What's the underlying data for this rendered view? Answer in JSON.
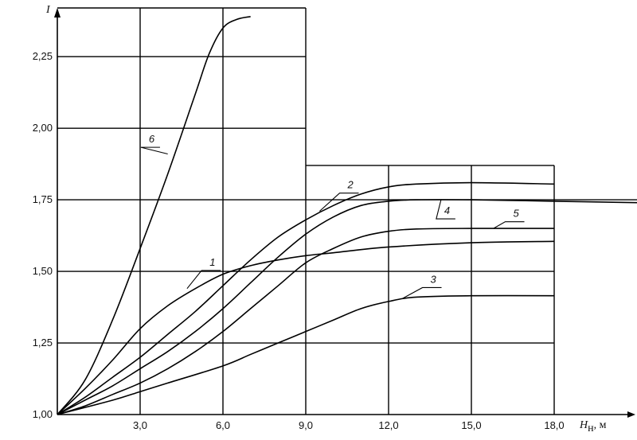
{
  "chart_data": {
    "type": "line",
    "ylabel": "I",
    "xlabel": "H",
    "xlabel_sub": "н",
    "xlabel_unit": ", м",
    "xlim": [
      0,
      21
    ],
    "ylim": [
      1.0,
      2.42
    ],
    "grid": true,
    "x_ticks": [
      {
        "value": 3,
        "label": "3,0"
      },
      {
        "value": 6,
        "label": "6,0"
      },
      {
        "value": 9,
        "label": "9,0"
      },
      {
        "value": 12,
        "label": "12,0"
      },
      {
        "value": 15,
        "label": "15,0"
      },
      {
        "value": 18,
        "label": "18,0"
      }
    ],
    "y_ticks": [
      {
        "value": 1.0,
        "label": "1,00"
      },
      {
        "value": 1.25,
        "label": "1,25"
      },
      {
        "value": 1.5,
        "label": "1,50"
      },
      {
        "value": 1.75,
        "label": "1,75"
      },
      {
        "value": 2.0,
        "label": "2,00"
      },
      {
        "value": 2.25,
        "label": "2,25"
      }
    ],
    "series": [
      {
        "name": "1",
        "x": [
          0,
          1,
          2,
          3,
          4,
          5,
          6,
          7,
          8,
          9,
          10,
          12,
          15,
          18
        ],
        "y": [
          1.0,
          1.09,
          1.19,
          1.3,
          1.38,
          1.44,
          1.49,
          1.52,
          1.54,
          1.555,
          1.565,
          1.585,
          1.6,
          1.605
        ]
      },
      {
        "name": "2",
        "x": [
          0,
          1,
          2,
          3,
          4,
          5,
          6,
          7,
          8,
          9,
          10,
          11,
          12,
          13,
          15,
          18
        ],
        "y": [
          1.0,
          1.06,
          1.13,
          1.2,
          1.28,
          1.36,
          1.45,
          1.54,
          1.62,
          1.68,
          1.73,
          1.77,
          1.795,
          1.805,
          1.81,
          1.805
        ]
      },
      {
        "name": "3",
        "x": [
          0,
          2,
          3,
          4,
          6,
          7,
          8,
          9,
          10,
          11,
          12,
          13,
          15,
          18
        ],
        "y": [
          1.0,
          1.05,
          1.08,
          1.11,
          1.17,
          1.21,
          1.25,
          1.29,
          1.33,
          1.37,
          1.395,
          1.41,
          1.415,
          1.415
        ]
      },
      {
        "name": "4",
        "x": [
          0,
          1,
          2,
          3,
          4,
          5,
          6,
          7,
          8,
          9,
          10,
          11,
          12,
          13,
          15,
          18,
          21
        ],
        "y": [
          1.0,
          1.05,
          1.1,
          1.16,
          1.22,
          1.29,
          1.37,
          1.46,
          1.55,
          1.63,
          1.69,
          1.73,
          1.745,
          1.75,
          1.75,
          1.745,
          1.74
        ]
      },
      {
        "name": "5",
        "x": [
          0,
          1,
          2,
          3,
          4,
          5,
          6,
          7,
          8,
          9,
          10,
          11,
          12,
          13,
          15,
          18
        ],
        "y": [
          1.0,
          1.03,
          1.07,
          1.11,
          1.16,
          1.22,
          1.29,
          1.37,
          1.45,
          1.53,
          1.58,
          1.62,
          1.64,
          1.648,
          1.65,
          1.65
        ]
      },
      {
        "name": "6",
        "x": [
          0,
          1,
          2,
          3,
          4,
          5,
          5.5,
          6,
          6.5,
          7
        ],
        "y": [
          1.0,
          1.12,
          1.33,
          1.58,
          1.84,
          2.12,
          2.26,
          2.35,
          2.38,
          2.39
        ]
      }
    ],
    "curve_labels": [
      {
        "series": "1",
        "text": "1",
        "at": [
          4.7,
          1.44
        ],
        "label": [
          5.4,
          1.52
        ]
      },
      {
        "series": "2",
        "text": "2",
        "at": [
          9.5,
          1.71
        ],
        "label": [
          10.4,
          1.79
        ]
      },
      {
        "series": "3",
        "text": "3",
        "at": [
          12.5,
          1.405
        ],
        "label": [
          13.4,
          1.46
        ]
      },
      {
        "series": "4",
        "text": "4",
        "at": [
          13.9,
          1.75
        ],
        "label": [
          13.9,
          1.7
        ]
      },
      {
        "series": "5",
        "text": "5",
        "at": [
          15.8,
          1.65
        ],
        "label": [
          16.4,
          1.69
        ]
      },
      {
        "series": "6",
        "text": "6",
        "at": [
          4.0,
          1.91
        ],
        "label": [
          3.2,
          1.95
        ]
      }
    ]
  }
}
